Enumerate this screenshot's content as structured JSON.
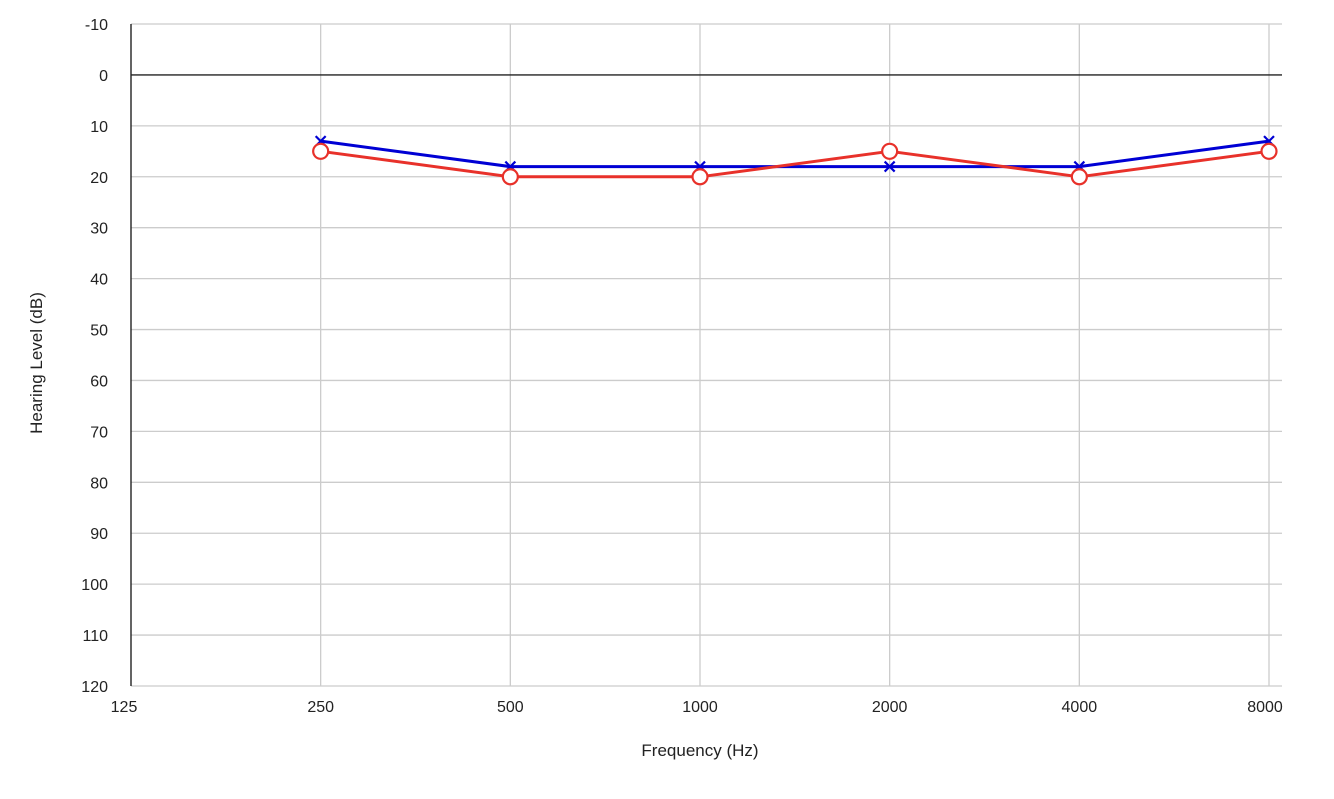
{
  "chart_data": {
    "type": "line",
    "title": "",
    "xlabel": "Frequency (Hz)",
    "ylabel": "Hearing Level (dB)",
    "x": [
      "125",
      "250",
      "500",
      "1000",
      "2000",
      "4000",
      "8000"
    ],
    "x_scale": "log2",
    "y_ticks": [
      "-10",
      "0",
      "10",
      "20",
      "30",
      "40",
      "50",
      "60",
      "70",
      "80",
      "90",
      "100",
      "110",
      "120"
    ],
    "ylim": [
      -10,
      120
    ],
    "y_inverted": true,
    "grid": true,
    "legend": "none",
    "series": [
      {
        "color": "#0000d4",
        "marker": "x",
        "points": [
          {
            "x": 250,
            "y": 13
          },
          {
            "x": 500,
            "y": 18
          },
          {
            "x": 1000,
            "y": 18
          },
          {
            "x": 2000,
            "y": 18
          },
          {
            "x": 4000,
            "y": 18
          },
          {
            "x": 8000,
            "y": 13
          }
        ]
      },
      {
        "color": "#e8312a",
        "marker": "circle",
        "points": [
          {
            "x": 250,
            "y": 15
          },
          {
            "x": 500,
            "y": 20
          },
          {
            "x": 1000,
            "y": 20
          },
          {
            "x": 2000,
            "y": 15
          },
          {
            "x": 4000,
            "y": 20
          },
          {
            "x": 8000,
            "y": 15
          }
        ]
      }
    ]
  }
}
